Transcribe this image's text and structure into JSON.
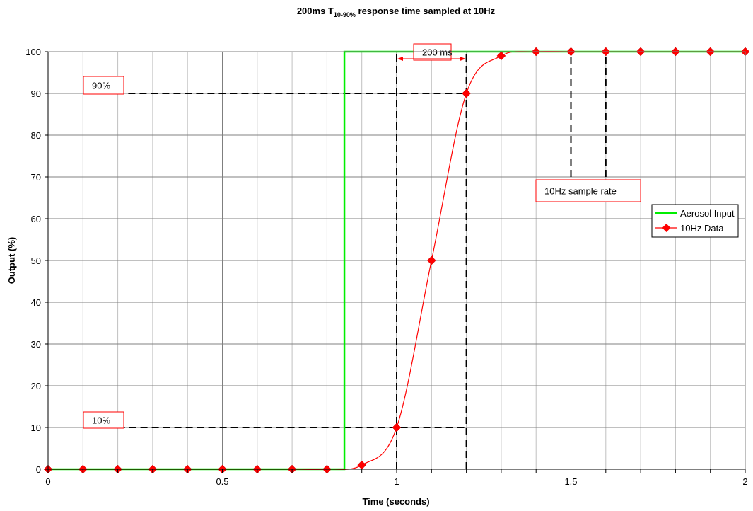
{
  "chart_data": {
    "type": "line",
    "title": {
      "prefix": "200ms T",
      "subscript": "10-90%",
      "suffix": " response time sampled at 10Hz"
    },
    "xlabel": "Time (seconds)",
    "ylabel": "Output (%)",
    "xlim": [
      0,
      2
    ],
    "ylim": [
      0,
      100
    ],
    "x_major_ticks": [
      "0",
      "0.5",
      "1",
      "1.5",
      "2"
    ],
    "y_ticks": [
      "0",
      "10",
      "20",
      "30",
      "40",
      "50",
      "60",
      "70",
      "80",
      "90",
      "100"
    ],
    "grid": true,
    "legend_position": "right",
    "series": [
      {
        "name": "Aerosol Input",
        "color": "#00ee00",
        "x": [
          0,
          0.85,
          0.85,
          2
        ],
        "y": [
          0,
          0,
          100,
          100
        ]
      },
      {
        "name": "10Hz Data",
        "color": "#ff0000",
        "marker": "diamond",
        "x": [
          0,
          0.1,
          0.2,
          0.3,
          0.4,
          0.5,
          0.6,
          0.7,
          0.8,
          0.9,
          1.0,
          1.1,
          1.2,
          1.3,
          1.4,
          1.5,
          1.6,
          1.7,
          1.8,
          1.9,
          2.0
        ],
        "y": [
          0,
          0,
          0,
          0,
          0,
          0,
          0,
          0,
          0,
          1,
          10,
          50,
          90,
          99,
          100,
          100,
          100,
          100,
          100,
          100,
          100
        ]
      }
    ],
    "annotations": [
      {
        "text": "90%"
      },
      {
        "text": "10%"
      },
      {
        "text": "200 ms"
      },
      {
        "text": "10Hz sample rate"
      }
    ],
    "reference_lines": {
      "horizontal": [
        {
          "y": 90,
          "x_from": 0.23,
          "x_to": 1.2
        },
        {
          "y": 10,
          "x_from": 0.2,
          "x_to": 1.2
        }
      ],
      "vertical": [
        {
          "x": 1.0,
          "y_from": 0,
          "y_to": 100
        },
        {
          "x": 1.2,
          "y_from": 0,
          "y_to": 100
        },
        {
          "x": 1.5,
          "y_from": 70,
          "y_to": 100
        },
        {
          "x": 1.6,
          "y_from": 70,
          "y_to": 100
        }
      ]
    }
  }
}
